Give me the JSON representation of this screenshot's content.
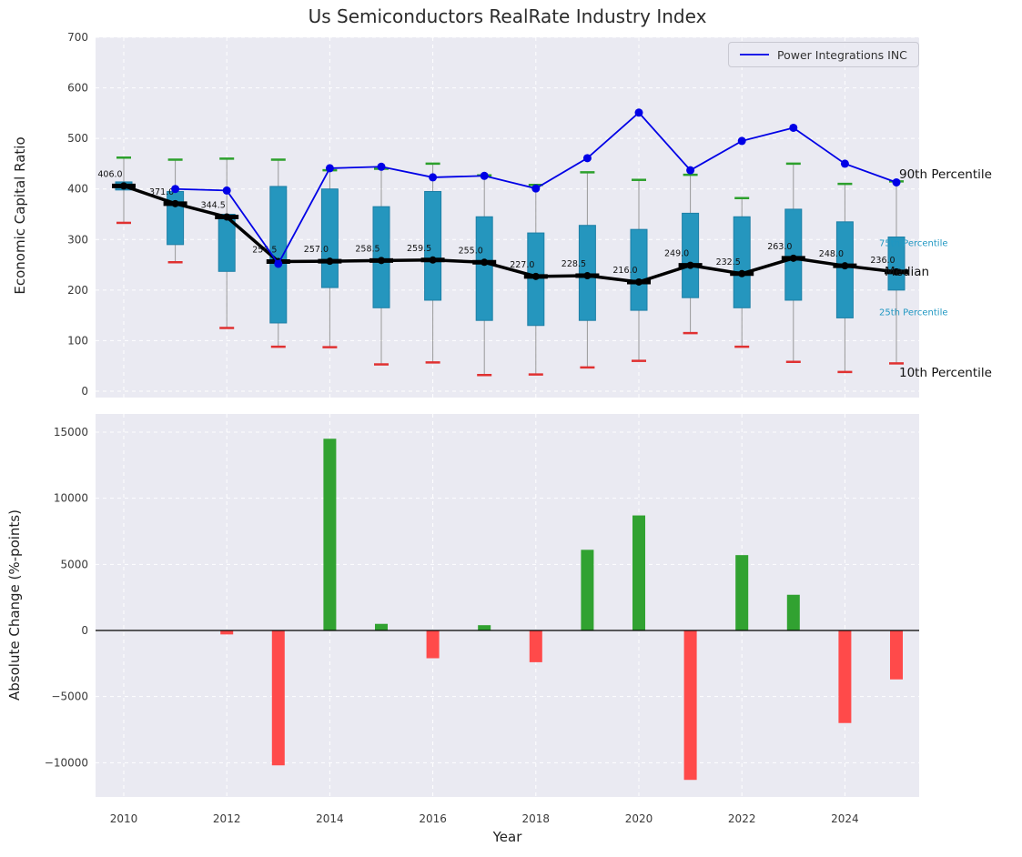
{
  "colors": {
    "plot_bg": "#eaeaf2",
    "grid": "#ffffff",
    "box_fill": "#2596be",
    "box_edge": "#1d7fa6",
    "whisker": "#999999",
    "median": "#000000",
    "p90_cap": "#2ca02c",
    "p10_cap": "#e03131",
    "company_line": "#0000e6",
    "bar_positive": "#31a231",
    "bar_negative": "#ff4a4a",
    "tick_label": "#3a3a3a",
    "percentile_label": "#1f97c2"
  },
  "chart_data": [
    {
      "type": "boxplot",
      "title": "Us Semiconductors RealRate Industry Index",
      "ylabel": "Economic Capital Ratio",
      "ylim": [
        0,
        700
      ],
      "yticks": [
        0,
        100,
        200,
        300,
        400,
        500,
        600,
        700
      ],
      "grid": "on",
      "years": [
        2010,
        2011,
        2012,
        2013,
        2014,
        2015,
        2016,
        2017,
        2018,
        2019,
        2020,
        2021,
        2022,
        2023,
        2024,
        2025
      ],
      "p10": [
        333,
        255,
        125,
        88,
        87,
        53,
        57,
        32,
        33,
        47,
        60,
        115,
        88,
        58,
        38,
        55
      ],
      "p25": [
        398,
        290,
        237,
        135,
        205,
        165,
        180,
        140,
        130,
        140,
        160,
        185,
        165,
        180,
        145,
        200
      ],
      "median": [
        406,
        371,
        344.5,
        256.5,
        257,
        258.5,
        259.5,
        255,
        227,
        228.5,
        216,
        249,
        232.5,
        263,
        248,
        236
      ],
      "p75": [
        414,
        395,
        350,
        405,
        400,
        365,
        395,
        345,
        313,
        328,
        320,
        352,
        345,
        360,
        335,
        305
      ],
      "p90": [
        462,
        458,
        460,
        458,
        437,
        440,
        450,
        427,
        408,
        433,
        418,
        428,
        382,
        450,
        410,
        415
      ],
      "median_labels": [
        "406.0",
        "371.0",
        "344.5",
        "256.5",
        "257.0",
        "258.5",
        "259.5",
        "255.0",
        "227.0",
        "228.5",
        "216.0",
        "249.0",
        "232.5",
        "263.0",
        "248.0",
        "236.0"
      ],
      "series": [
        {
          "name": "Power Integrations INC",
          "type": "line",
          "years": [
            2011,
            2012,
            2013,
            2014,
            2015,
            2016,
            2017,
            2018,
            2019,
            2020,
            2021,
            2022,
            2023,
            2024,
            2025
          ],
          "values": [
            400,
            397,
            252,
            441,
            444,
            423,
            426,
            401,
            461,
            551,
            437,
            495,
            521,
            450,
            413
          ]
        }
      ],
      "legend_position": "upper right",
      "percentile_annotations": [
        {
          "label": "90th Percentile",
          "size": "large"
        },
        {
          "label": "75th Percentile",
          "size": "small"
        },
        {
          "label": "Median",
          "size": "large"
        },
        {
          "label": "25th Percentile",
          "size": "small"
        },
        {
          "label": "10th Percentile",
          "size": "large"
        }
      ]
    },
    {
      "type": "bar",
      "ylabel": "Absolute Change (%-points)",
      "xlabel": "Year",
      "ylim": [
        -12500,
        16500
      ],
      "yticks": [
        -10000,
        -5000,
        0,
        5000,
        10000,
        15000
      ],
      "xticks": [
        2010,
        2012,
        2014,
        2016,
        2018,
        2020,
        2022,
        2024
      ],
      "grid": "on",
      "years": [
        2010,
        2011,
        2012,
        2013,
        2014,
        2015,
        2016,
        2017,
        2018,
        2019,
        2020,
        2021,
        2022,
        2023,
        2024,
        2025
      ],
      "values": [
        0,
        0,
        -300,
        -10200,
        14500,
        500,
        -2100,
        400,
        -2400,
        6100,
        8700,
        -11300,
        5700,
        2700,
        -7000,
        -3700
      ]
    }
  ]
}
